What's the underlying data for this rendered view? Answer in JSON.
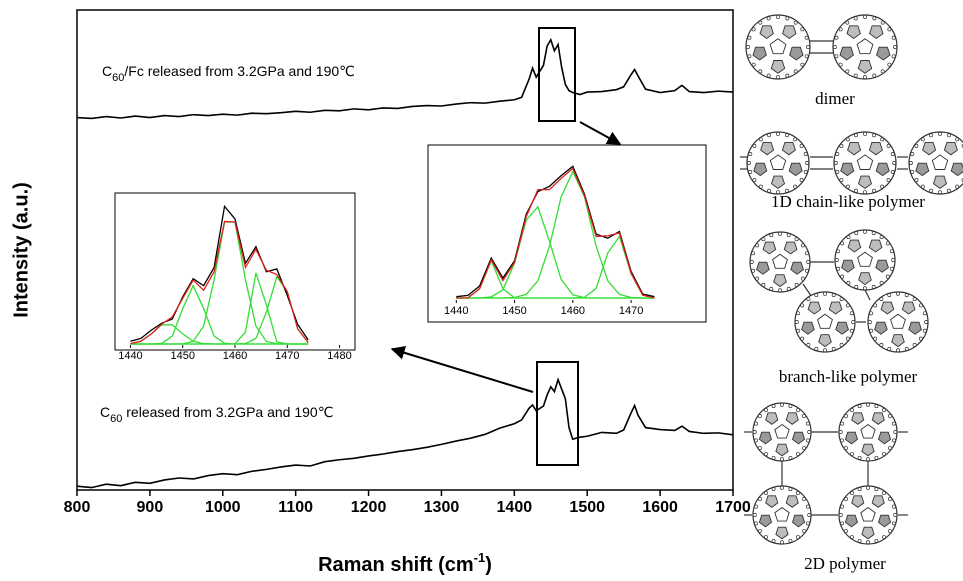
{
  "chart_data": [
    {
      "type": "line",
      "xlabel": [
        "Raman shift (cm",
        "-1",
        ")"
      ],
      "ylabel": "Intensity (a.u.)",
      "annotations": [
        [
          "C",
          "60",
          "/Fc released from 3.2GPa and 190℃"
        ],
        [
          "C",
          "60",
          " released from 3.2GPa and 190℃"
        ]
      ],
      "x": [
        800,
        820,
        840,
        860,
        880,
        900,
        920,
        940,
        960,
        980,
        1000,
        1020,
        1040,
        1060,
        1080,
        1100,
        1120,
        1140,
        1160,
        1180,
        1200,
        1220,
        1240,
        1260,
        1280,
        1300,
        1320,
        1340,
        1360,
        1380,
        1400,
        1410,
        1420,
        1425,
        1430,
        1440,
        1445,
        1450,
        1455,
        1460,
        1465,
        1470,
        1475,
        1480,
        1490,
        1500,
        1520,
        1540,
        1550,
        1560,
        1565,
        1570,
        1580,
        1600,
        1620,
        1630,
        1640,
        1660,
        1680,
        1700
      ],
      "xlim": [
        800,
        1700
      ],
      "xticks": [
        800,
        900,
        1000,
        1100,
        1200,
        1300,
        1400,
        1500,
        1600,
        1700
      ],
      "ylim": [
        0,
        100
      ],
      "series": [
        {
          "color": "#000000",
          "values": [
            77.6,
            77.4,
            77.8,
            77.5,
            77.9,
            77.6,
            78.0,
            77.8,
            78.2,
            78.0,
            78.3,
            78.1,
            78.5,
            78.4,
            78.6,
            78.9,
            78.7,
            79.1,
            79.0,
            79.4,
            79.2,
            79.6,
            79.5,
            79.9,
            80.1,
            80.0,
            80.4,
            80.7,
            80.6,
            81.0,
            81.3,
            81.8,
            85.5,
            87.9,
            86.0,
            88.5,
            92.5,
            93.8,
            91.5,
            92.8,
            88.0,
            84.5,
            83.2,
            82.8,
            82.4,
            82.9,
            83.0,
            83.4,
            84.0,
            86.5,
            87.6,
            86.2,
            83.5,
            82.8,
            83.2,
            84.3,
            83.0,
            82.8,
            83.1,
            82.9
          ]
        },
        {
          "color": "#000000",
          "values": [
            0.8,
            0.5,
            1.2,
            0.9,
            1.6,
            1.4,
            2.1,
            2.5,
            2.3,
            3.0,
            3.4,
            3.2,
            3.9,
            4.3,
            4.8,
            5.2,
            5.0,
            5.9,
            6.3,
            6.6,
            7.1,
            7.5,
            8.0,
            8.4,
            8.9,
            9.5,
            10.2,
            10.8,
            11.6,
            12.9,
            13.8,
            14.6,
            17.0,
            17.7,
            16.5,
            17.5,
            19.8,
            21.5,
            20.5,
            23.0,
            21.0,
            19.0,
            13.0,
            10.6,
            11.0,
            11.2,
            12.0,
            11.8,
            12.5,
            16.0,
            17.6,
            15.5,
            13.0,
            12.6,
            12.4,
            13.3,
            12.2,
            11.8,
            11.9,
            11.5
          ]
        }
      ]
    },
    {
      "type": "line",
      "x": [
        1440,
        1442,
        1444,
        1446,
        1448,
        1450,
        1452,
        1454,
        1456,
        1458,
        1460,
        1462,
        1464,
        1466,
        1468,
        1470,
        1472,
        1474
      ],
      "xlim": [
        1438,
        1482
      ],
      "xticks": [
        1440,
        1450,
        1460,
        1470,
        1480
      ],
      "ylim": [
        0,
        100
      ],
      "series": [
        {
          "color": "#33dd33",
          "values": [
            0.3,
            2,
            7.3,
            13.8,
            13.8,
            7.3,
            2,
            0.3,
            0,
            0,
            0,
            0,
            0,
            0,
            0,
            0,
            0,
            0
          ]
        },
        {
          "color": "#33dd33",
          "values": [
            0,
            0,
            0,
            0.5,
            5.7,
            25.5,
            42,
            25.5,
            5.7,
            0.5,
            0,
            0,
            0,
            0,
            0,
            0,
            0,
            0
          ]
        },
        {
          "color": "#33dd33",
          "values": [
            0,
            0,
            0,
            0,
            0,
            0.1,
            1.9,
            12.9,
            46.2,
            87.7,
            87.7,
            46.2,
            12.9,
            1.9,
            0.1,
            0,
            0,
            0
          ]
        },
        {
          "color": "#33dd33",
          "values": [
            0,
            0,
            0,
            0,
            0,
            0,
            0,
            0,
            0,
            0,
            0.1,
            8.6,
            51.1,
            28.3,
            1.5,
            0,
            0,
            0
          ]
        },
        {
          "color": "#33dd33",
          "values": [
            0,
            0,
            0,
            0,
            0,
            0,
            0,
            0,
            0,
            0,
            0,
            0.3,
            4,
            22.9,
            48.4,
            37.7,
            10.8,
            1.1
          ]
        },
        {
          "color": "#000000",
          "values": [
            2,
            4,
            10,
            15,
            18,
            34,
            47,
            42,
            55,
            99,
            90,
            58,
            70,
            52,
            54,
            35,
            14,
            3
          ]
        },
        {
          "color": "#e02020",
          "values": [
            0.3,
            2,
            7.3,
            14.3,
            19.5,
            32.9,
            45.9,
            38.7,
            51.9,
            88.2,
            87.8,
            55.1,
            68,
            53.1,
            50,
            37.7,
            10.8,
            1.1
          ]
        }
      ]
    },
    {
      "type": "line",
      "x": [
        1440,
        1442,
        1444,
        1446,
        1448,
        1450,
        1452,
        1454,
        1456,
        1458,
        1460,
        1462,
        1464,
        1466,
        1468,
        1470,
        1472,
        1474
      ],
      "xlim": [
        1436,
        1482
      ],
      "xticks": [
        1440,
        1450,
        1460,
        1470
      ],
      "ylim": [
        0,
        100
      ],
      "series": [
        {
          "color": "#33dd33",
          "values": [
            0,
            0.1,
            7,
            28,
            7,
            0.1,
            0,
            0,
            0,
            0,
            0,
            0,
            0,
            0,
            0,
            0,
            0,
            0
          ]
        },
        {
          "color": "#33dd33",
          "values": [
            0,
            0,
            0,
            0.8,
            6.2,
            26.3,
            58.5,
            68.6,
            42.5,
            13.9,
            2.4,
            0.2,
            0,
            0,
            0,
            0,
            0,
            0
          ]
        },
        {
          "color": "#33dd33",
          "values": [
            0,
            0,
            0,
            0,
            0,
            0.4,
            2.7,
            12.9,
            39,
            76.1,
            95,
            76.1,
            39,
            12.9,
            2.7,
            0.4,
            0,
            0
          ]
        },
        {
          "color": "#33dd33",
          "values": [
            0,
            0,
            0,
            0,
            0,
            0,
            0,
            0,
            0,
            0,
            0,
            0.5,
            7.2,
            33.9,
            46.2,
            18.3,
            2.1,
            0.1
          ]
        },
        {
          "color": "#000000",
          "values": [
            1,
            2,
            9,
            30,
            15,
            28,
            63,
            80,
            84,
            92,
            99,
            78,
            48,
            45,
            50,
            20,
            3,
            1
          ]
        },
        {
          "color": "#e02020",
          "values": [
            0,
            0.1,
            7,
            28.8,
            13.2,
            26.8,
            61.2,
            81.5,
            81.5,
            90,
            97.4,
            76.8,
            46.2,
            46.8,
            48.9,
            18.7,
            2.1,
            0.1
          ]
        }
      ]
    }
  ],
  "structures": [
    "dimer",
    "1D chain-like polymer",
    "branch-like polymer",
    "2D polymer"
  ]
}
